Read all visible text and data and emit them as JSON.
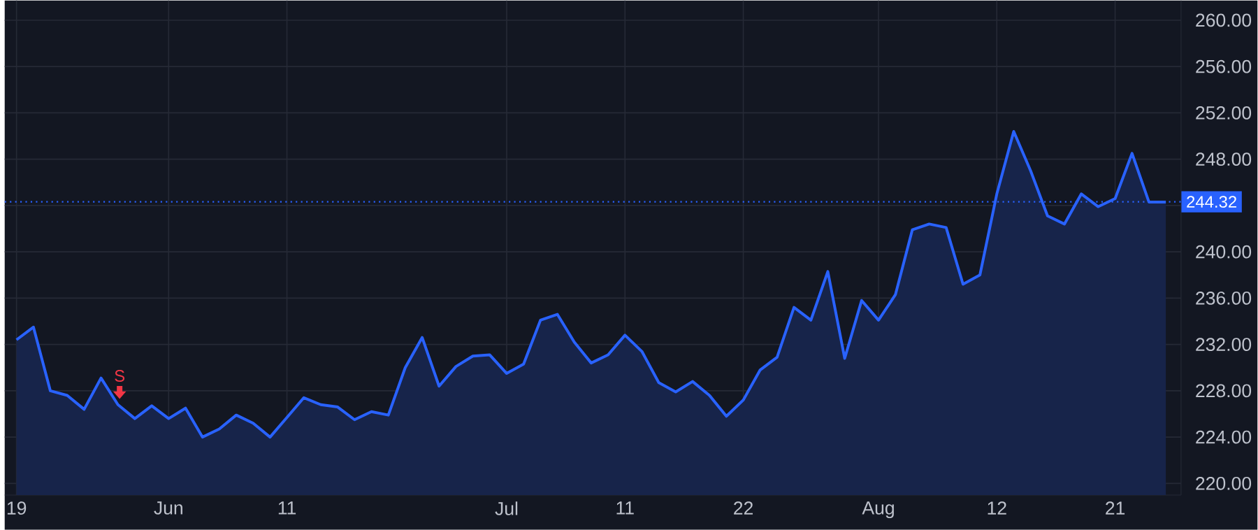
{
  "chart_data": {
    "type": "area",
    "categories": [
      "19",
      null,
      null,
      null,
      null,
      null,
      null,
      null,
      null,
      "Jun",
      null,
      null,
      null,
      null,
      null,
      null,
      "11",
      null,
      null,
      null,
      null,
      null,
      null,
      null,
      null,
      null,
      null,
      null,
      null,
      "Jul",
      null,
      null,
      null,
      null,
      null,
      null,
      "11",
      null,
      null,
      null,
      null,
      null,
      null,
      "22",
      null,
      null,
      null,
      null,
      null,
      null,
      null,
      "Aug",
      null,
      null,
      null,
      null,
      null,
      null,
      "12",
      null,
      null,
      null,
      null,
      null,
      null,
      "21",
      null,
      null,
      null
    ],
    "series": [
      {
        "color": "#2962ff",
        "values": [
          232.4,
          233.5,
          228.0,
          227.6,
          226.4,
          229.1,
          226.8,
          225.6,
          226.7,
          225.6,
          226.5,
          224.0,
          224.7,
          225.9,
          225.2,
          224.0,
          225.7,
          227.4,
          226.8,
          226.6,
          225.5,
          226.2,
          225.9,
          230.0,
          232.6,
          228.4,
          230.1,
          231.0,
          231.1,
          229.5,
          230.3,
          234.1,
          234.6,
          232.2,
          230.4,
          231.1,
          232.8,
          231.4,
          228.7,
          227.9,
          228.8,
          227.6,
          225.8,
          227.2,
          229.8,
          230.9,
          235.2,
          234.1,
          238.3,
          230.8,
          235.8,
          234.1,
          236.3,
          241.9,
          242.4,
          242.1,
          237.2,
          238.0,
          245.0,
          250.4,
          247.0,
          243.1,
          242.4,
          245.0,
          243.9,
          244.6,
          248.5,
          244.3,
          244.3
        ]
      }
    ],
    "ylim": [
      219,
      261.7
    ],
    "yticks": [
      {
        "value": 220,
        "label": "220.00"
      },
      {
        "value": 224,
        "label": "224.00"
      },
      {
        "value": 228,
        "label": "228.00"
      },
      {
        "value": 232,
        "label": "232.00"
      },
      {
        "value": 236,
        "label": "236.00"
      },
      {
        "value": 240,
        "label": "240.00"
      },
      {
        "value": 244,
        "label": null
      },
      {
        "value": 248,
        "label": "248.00"
      },
      {
        "value": 252,
        "label": "252.00"
      },
      {
        "value": 256,
        "label": "256.00"
      },
      {
        "value": 260,
        "label": "260.00"
      }
    ],
    "ref_lines": [
      {
        "axis": "y",
        "value": 244.32,
        "label": "244.32",
        "color": "#2962ff",
        "line_style": "dotted"
      }
    ],
    "annotations": [
      {
        "text": "S",
        "y": 227.3
      }
    ],
    "grid": true
  }
}
